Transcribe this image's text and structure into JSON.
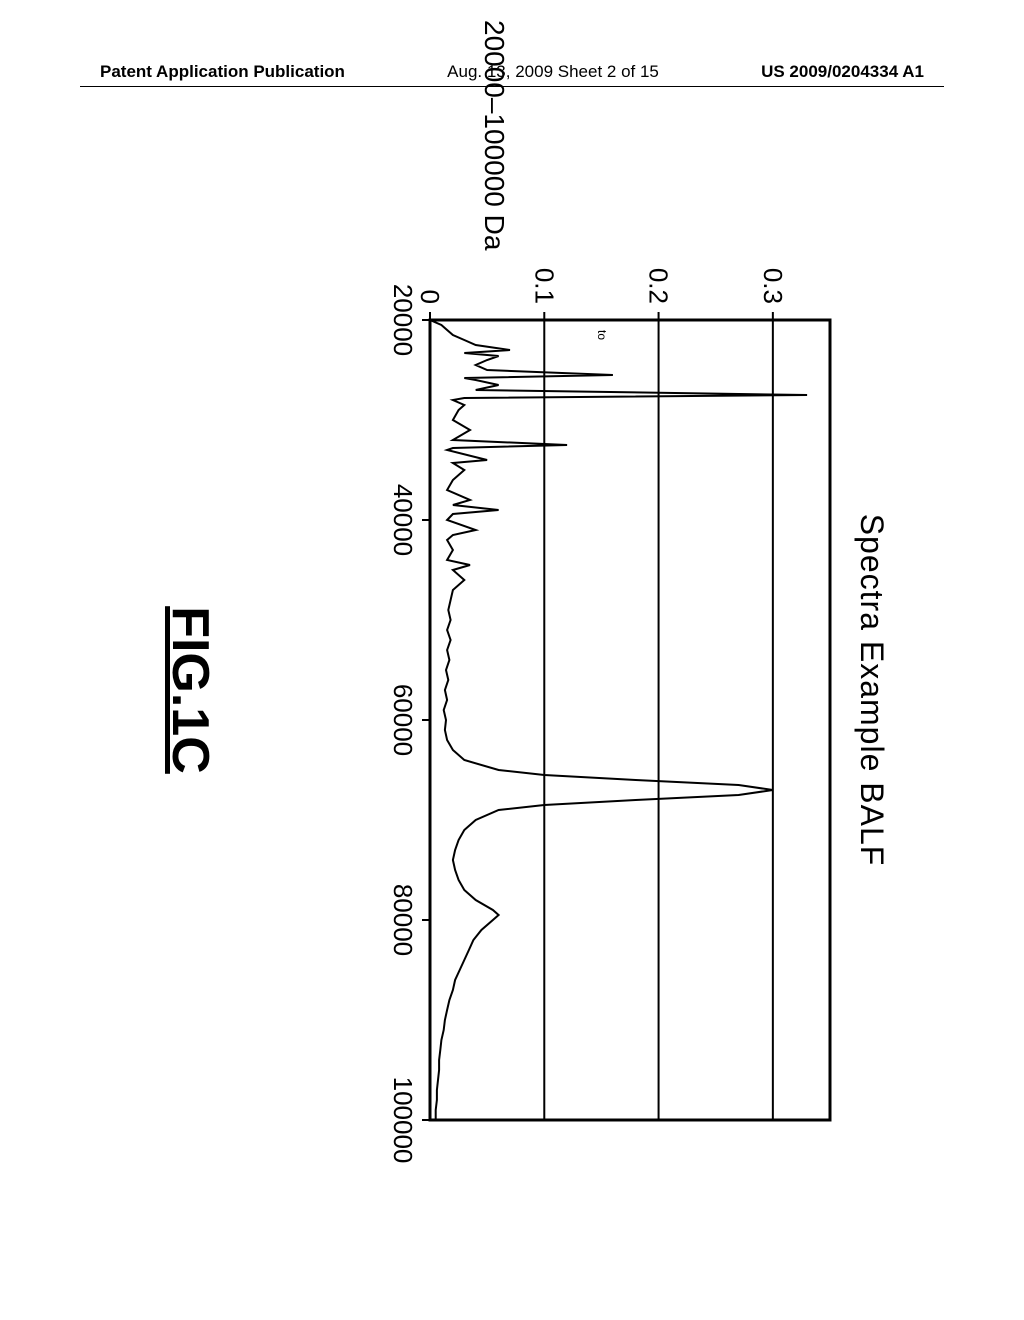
{
  "header": {
    "left": "Patent Application Publication",
    "center": "Aug. 13, 2009  Sheet 2 of 15",
    "right": "US 2009/0204334 A1"
  },
  "figure": {
    "title": "Spectra Example BALF",
    "label": "FIG.1C",
    "range_label": "20000–100000 Da"
  },
  "chart": {
    "type": "line",
    "xlim": [
      20000,
      100000
    ],
    "ylim": [
      0,
      0.35
    ],
    "x_ticks": [
      20000,
      40000,
      60000,
      80000,
      100000
    ],
    "y_ticks": [
      0,
      0.1,
      0.2,
      0.3
    ],
    "y_grid": true,
    "line_color": "#000000",
    "line_width": 2,
    "background_color": "#ffffff",
    "border_color": "#000000",
    "tick_fontsize": 26,
    "small_marker_text": "to",
    "series": [
      [
        20000,
        0.0
      ],
      [
        20500,
        0.01
      ],
      [
        21000,
        0.015
      ],
      [
        21500,
        0.02
      ],
      [
        22000,
        0.03
      ],
      [
        22500,
        0.04
      ],
      [
        23000,
        0.07
      ],
      [
        23300,
        0.03
      ],
      [
        23600,
        0.06
      ],
      [
        24000,
        0.05
      ],
      [
        24500,
        0.04
      ],
      [
        25000,
        0.05
      ],
      [
        25500,
        0.16
      ],
      [
        25800,
        0.03
      ],
      [
        26000,
        0.04
      ],
      [
        26500,
        0.06
      ],
      [
        27000,
        0.04
      ],
      [
        27500,
        0.33
      ],
      [
        27800,
        0.03
      ],
      [
        28000,
        0.02
      ],
      [
        28500,
        0.03
      ],
      [
        29000,
        0.025
      ],
      [
        30000,
        0.02
      ],
      [
        31000,
        0.035
      ],
      [
        32000,
        0.02
      ],
      [
        32500,
        0.12
      ],
      [
        32800,
        0.02
      ],
      [
        33000,
        0.015
      ],
      [
        34000,
        0.05
      ],
      [
        34300,
        0.02
      ],
      [
        35000,
        0.03
      ],
      [
        36000,
        0.02
      ],
      [
        37000,
        0.015
      ],
      [
        38000,
        0.035
      ],
      [
        38500,
        0.02
      ],
      [
        39000,
        0.06
      ],
      [
        39400,
        0.02
      ],
      [
        40000,
        0.015
      ],
      [
        41000,
        0.04
      ],
      [
        41500,
        0.02
      ],
      [
        42000,
        0.015
      ],
      [
        43000,
        0.02
      ],
      [
        44000,
        0.015
      ],
      [
        44500,
        0.035
      ],
      [
        45000,
        0.02
      ],
      [
        46000,
        0.03
      ],
      [
        47000,
        0.02
      ],
      [
        48000,
        0.018
      ],
      [
        49000,
        0.016
      ],
      [
        50000,
        0.018
      ],
      [
        51000,
        0.015
      ],
      [
        52000,
        0.018
      ],
      [
        53000,
        0.015
      ],
      [
        54000,
        0.017
      ],
      [
        55000,
        0.014
      ],
      [
        56000,
        0.016
      ],
      [
        57000,
        0.013
      ],
      [
        58000,
        0.015
      ],
      [
        59000,
        0.012
      ],
      [
        60000,
        0.014
      ],
      [
        61000,
        0.013
      ],
      [
        62000,
        0.015
      ],
      [
        63000,
        0.02
      ],
      [
        64000,
        0.03
      ],
      [
        65000,
        0.06
      ],
      [
        65500,
        0.1
      ],
      [
        66000,
        0.18
      ],
      [
        66500,
        0.27
      ],
      [
        67000,
        0.3
      ],
      [
        67500,
        0.27
      ],
      [
        68000,
        0.18
      ],
      [
        68500,
        0.1
      ],
      [
        69000,
        0.06
      ],
      [
        70000,
        0.04
      ],
      [
        71000,
        0.03
      ],
      [
        72000,
        0.025
      ],
      [
        73000,
        0.022
      ],
      [
        74000,
        0.02
      ],
      [
        75000,
        0.022
      ],
      [
        76000,
        0.025
      ],
      [
        77000,
        0.03
      ],
      [
        78000,
        0.04
      ],
      [
        79000,
        0.055
      ],
      [
        79500,
        0.06
      ],
      [
        80000,
        0.055
      ],
      [
        81000,
        0.045
      ],
      [
        82000,
        0.038
      ],
      [
        83000,
        0.034
      ],
      [
        84000,
        0.03
      ],
      [
        85000,
        0.026
      ],
      [
        86000,
        0.022
      ],
      [
        87000,
        0.02
      ],
      [
        88000,
        0.017
      ],
      [
        89000,
        0.015
      ],
      [
        90000,
        0.013
      ],
      [
        91000,
        0.012
      ],
      [
        92000,
        0.01
      ],
      [
        93000,
        0.009
      ],
      [
        94000,
        0.008
      ],
      [
        95000,
        0.008
      ],
      [
        96000,
        0.007
      ],
      [
        97000,
        0.006
      ],
      [
        98000,
        0.006
      ],
      [
        99000,
        0.005
      ],
      [
        100000,
        0.005
      ]
    ]
  }
}
